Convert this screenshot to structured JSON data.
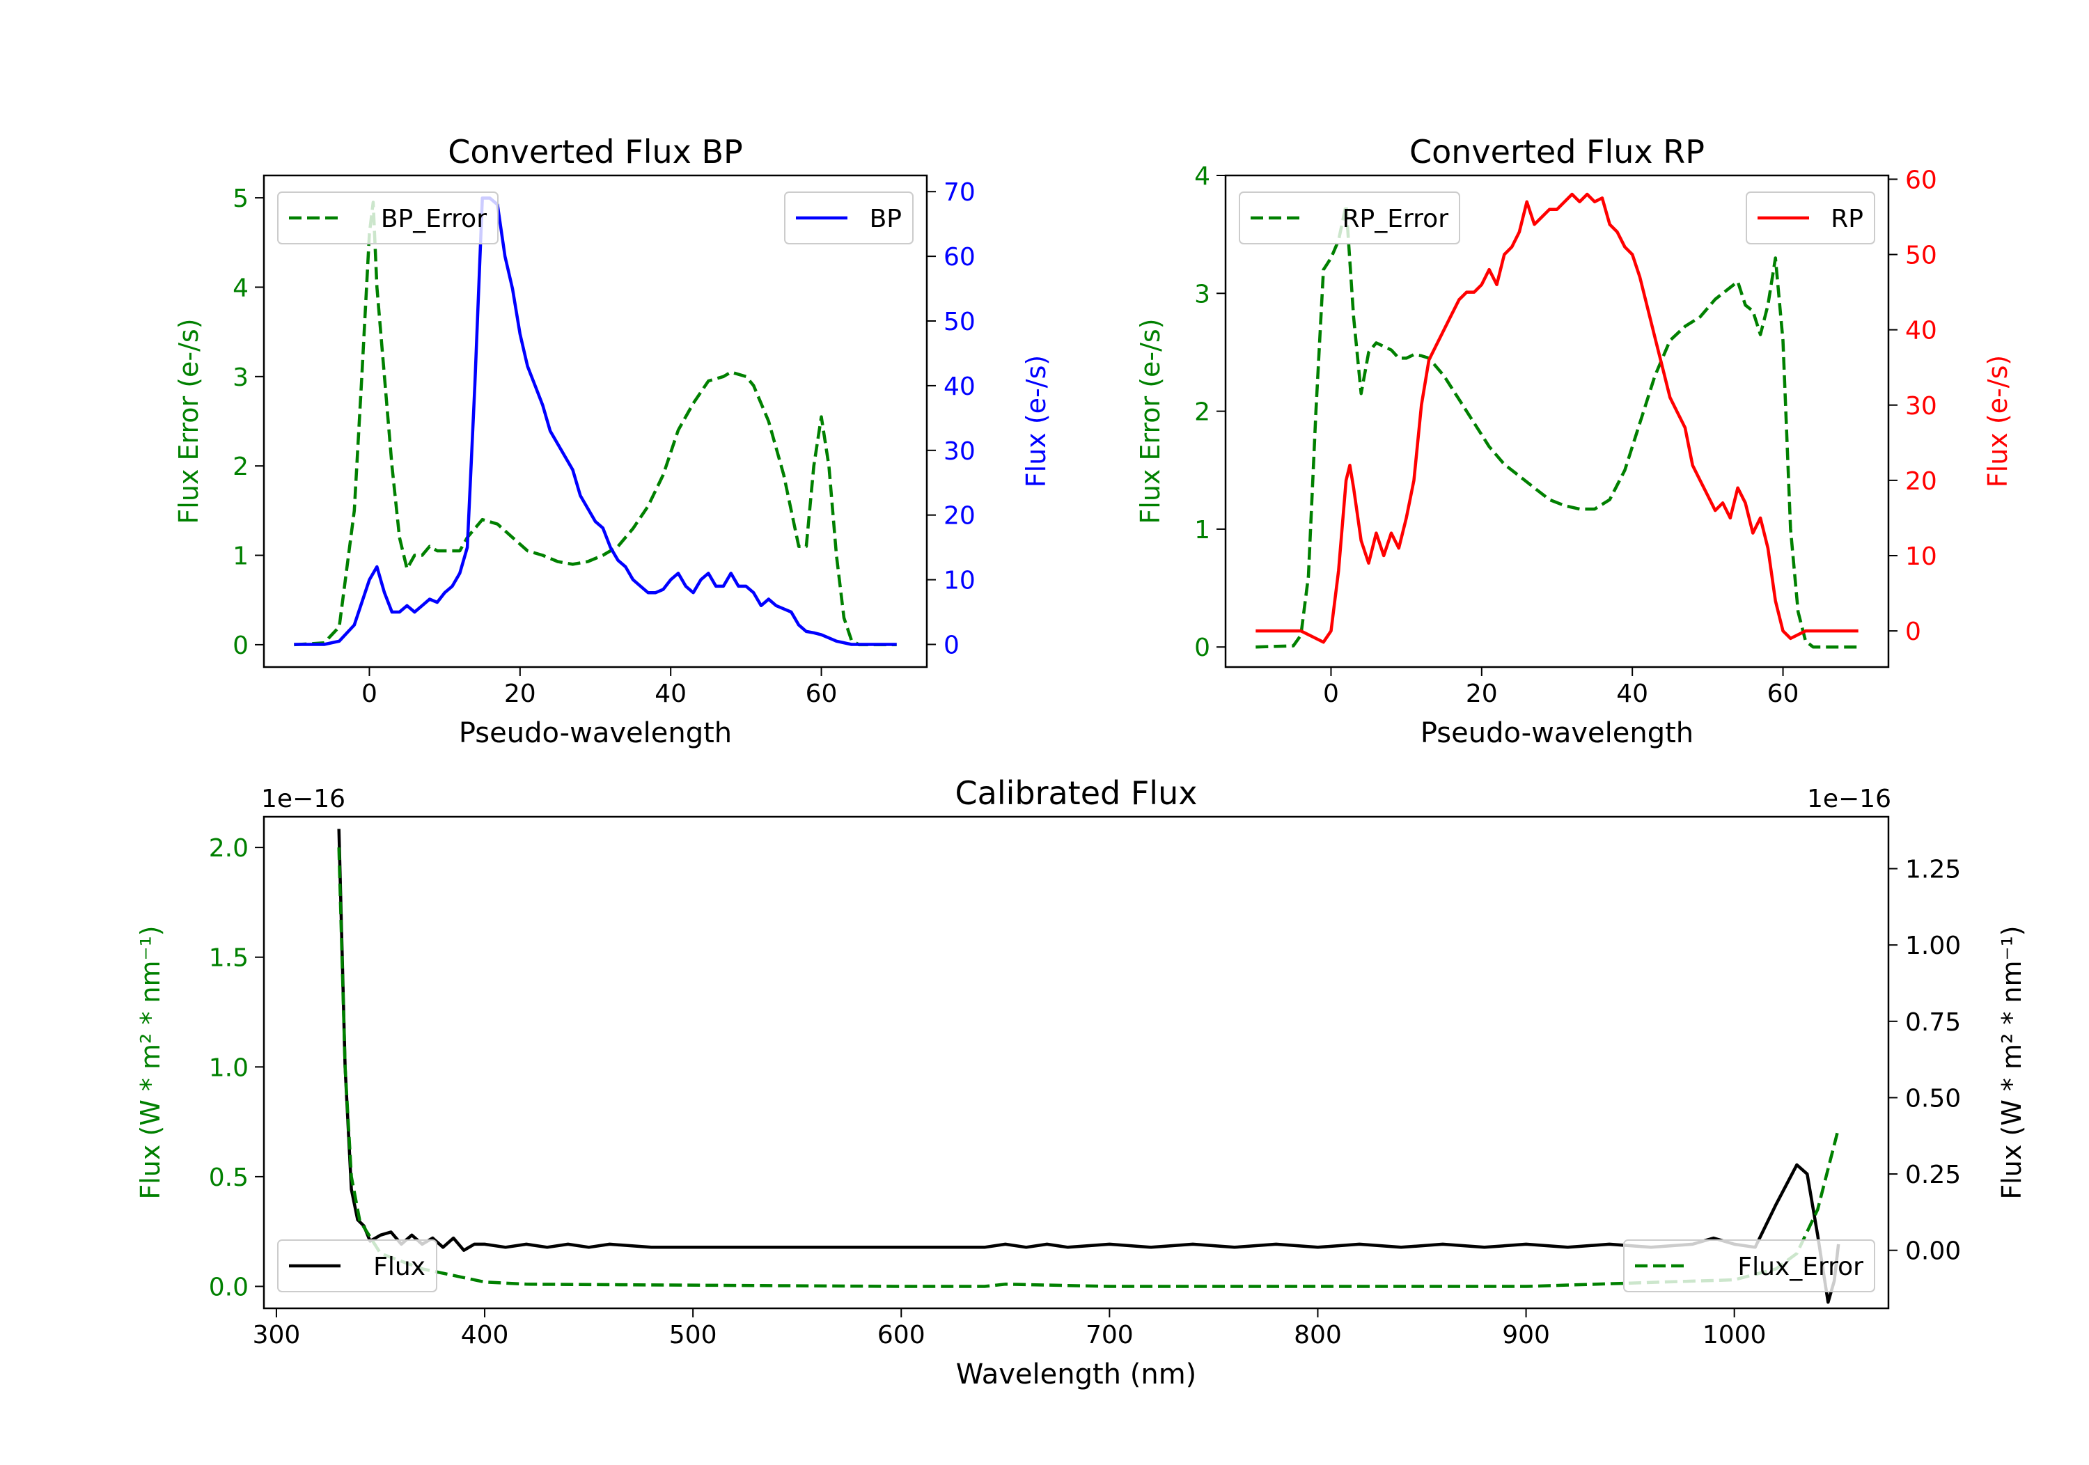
{
  "chart_data": [
    {
      "type": "line",
      "title": "Converted Flux BP",
      "xlabel": "Pseudo-wavelength",
      "ylabel_left": "Flux Error (e-/s)",
      "ylabel_right": "Flux (e-/s)",
      "xlim": [
        -14,
        74
      ],
      "xticks": [
        0,
        20,
        40,
        60
      ],
      "ylim_left": [
        -0.25,
        5.25
      ],
      "yticks_left": [
        0,
        1,
        2,
        3,
        4,
        5
      ],
      "ylim_right": [
        -3.5,
        72.5
      ],
      "yticks_right": [
        0,
        10,
        20,
        30,
        40,
        50,
        60,
        70
      ],
      "left_color": "#008000",
      "right_color": "#0000ff",
      "series": [
        {
          "name": "BP_Error",
          "axis": "left",
          "style": "dashed",
          "color": "#008000",
          "legend": "upper-left",
          "x": [
            -10,
            -6,
            -4,
            -2,
            -1,
            0,
            0.5,
            1,
            2,
            3,
            4,
            5,
            6,
            7,
            8,
            9,
            10,
            12,
            13,
            15,
            17,
            19,
            21,
            23,
            25,
            27,
            29,
            31,
            33,
            35,
            37,
            39,
            41,
            43,
            45,
            47,
            48,
            50,
            51,
            53,
            55,
            57,
            58,
            59,
            60,
            61,
            62,
            63,
            64,
            65,
            70
          ],
          "y": [
            0,
            0.02,
            0.2,
            1.5,
            3,
            4.6,
            4.95,
            4,
            3,
            2,
            1.2,
            0.85,
            1,
            1,
            1.1,
            1.05,
            1.05,
            1.05,
            1.2,
            1.4,
            1.35,
            1.2,
            1.05,
            1,
            0.93,
            0.9,
            0.93,
            1,
            1.1,
            1.3,
            1.55,
            1.9,
            2.4,
            2.7,
            2.95,
            3,
            3.05,
            3,
            2.9,
            2.5,
            1.9,
            1.1,
            1.1,
            2,
            2.55,
            2,
            1,
            0.3,
            0.05,
            0,
            0
          ]
        },
        {
          "name": "BP",
          "axis": "right",
          "style": "solid",
          "color": "#0000ff",
          "legend": "upper-right",
          "x": [
            -10,
            -6,
            -4,
            -2,
            0,
            1,
            2,
            3,
            4,
            5,
            6,
            7,
            8,
            9,
            10,
            11,
            12,
            13,
            14,
            15,
            16,
            17,
            18,
            19,
            20,
            21,
            22,
            23,
            24,
            25,
            26,
            27,
            28,
            29,
            30,
            31,
            32,
            33,
            34,
            35,
            36,
            37,
            38,
            39,
            40,
            41,
            42,
            43,
            44,
            45,
            46,
            47,
            48,
            49,
            50,
            51,
            52,
            53,
            54,
            55,
            56,
            57,
            58,
            59,
            60,
            61,
            62,
            64,
            70
          ],
          "y": [
            0,
            0,
            0.5,
            3,
            10,
            12,
            8,
            5,
            5,
            6,
            5,
            6,
            7,
            6.5,
            8,
            9,
            11,
            15,
            40,
            69,
            69,
            68,
            60,
            55,
            48,
            43,
            40,
            37,
            33,
            31,
            29,
            27,
            23,
            21,
            19,
            18,
            15,
            13,
            12,
            10,
            9,
            8,
            8,
            8.5,
            10,
            11,
            9,
            8,
            10,
            11,
            9,
            9,
            11,
            9,
            9,
            8,
            6,
            7,
            6,
            5.5,
            5,
            3,
            2,
            1.8,
            1.5,
            1,
            0.5,
            0,
            0
          ]
        }
      ]
    },
    {
      "type": "line",
      "title": "Converted Flux RP",
      "xlabel": "Pseudo-wavelength",
      "ylabel_left": "Flux Error (e-/s)",
      "ylabel_right": "Flux (e-/s)",
      "xlim": [
        -14,
        74
      ],
      "xticks": [
        0,
        20,
        40,
        60
      ],
      "ylim_left": [
        -0.17,
        4.0
      ],
      "yticks_left": [
        0,
        1,
        2,
        3,
        4
      ],
      "ylim_right": [
        -4.8,
        60.5
      ],
      "yticks_right": [
        0,
        10,
        20,
        30,
        40,
        50,
        60
      ],
      "left_color": "#008000",
      "right_color": "#ff0000",
      "series": [
        {
          "name": "RP_Error",
          "axis": "left",
          "style": "dashed",
          "color": "#008000",
          "legend": "upper-left",
          "x": [
            -10,
            -5,
            -4,
            -3,
            -2,
            -1,
            0,
            1,
            2,
            3,
            4,
            5,
            6,
            7,
            8,
            9,
            10,
            11,
            12,
            13,
            15,
            17,
            19,
            21,
            23,
            25,
            27,
            29,
            31,
            33,
            35,
            37,
            39,
            41,
            43,
            45,
            47,
            49,
            51,
            53,
            54,
            55,
            56,
            57,
            58,
            59,
            60,
            61,
            62,
            63,
            64,
            70
          ],
          "y": [
            0,
            0.01,
            0.1,
            0.6,
            2,
            3.2,
            3.3,
            3.45,
            3.75,
            2.8,
            2.15,
            2.5,
            2.58,
            2.55,
            2.52,
            2.45,
            2.45,
            2.48,
            2.47,
            2.45,
            2.3,
            2.1,
            1.9,
            1.7,
            1.55,
            1.45,
            1.35,
            1.25,
            1.2,
            1.17,
            1.17,
            1.25,
            1.5,
            1.9,
            2.3,
            2.6,
            2.72,
            2.8,
            2.95,
            3.05,
            3.1,
            2.9,
            2.85,
            2.65,
            2.9,
            3.3,
            2.6,
            1,
            0.3,
            0.05,
            0,
            0
          ]
        },
        {
          "name": "RP",
          "axis": "right",
          "style": "solid",
          "color": "#ff0000",
          "legend": "upper-right",
          "x": [
            -10,
            -4,
            -2,
            -1,
            0,
            1,
            2,
            2.5,
            3,
            4,
            5,
            6,
            7,
            8,
            9,
            10,
            11,
            12,
            13,
            14,
            15,
            16,
            17,
            18,
            19,
            20,
            21,
            22,
            23,
            24,
            25,
            26,
            27,
            28,
            29,
            30,
            31,
            32,
            33,
            34,
            35,
            36,
            37,
            38,
            39,
            40,
            41,
            42,
            43,
            44,
            45,
            46,
            47,
            48,
            49,
            50,
            51,
            52,
            53,
            54,
            55,
            56,
            57,
            58,
            59,
            60,
            61,
            62,
            63,
            64,
            70
          ],
          "y": [
            0,
            0,
            -1,
            -1.5,
            0,
            8,
            20,
            22,
            19,
            12,
            9,
            13,
            10,
            13,
            11,
            15,
            20,
            30,
            36,
            38,
            40,
            42,
            44,
            45,
            45,
            46,
            48,
            46,
            50,
            51,
            53,
            57,
            54,
            55,
            56,
            56,
            57,
            58,
            57,
            58,
            57,
            57.5,
            54,
            53,
            51,
            50,
            47,
            43,
            39,
            35,
            31,
            29,
            27,
            22,
            20,
            18,
            16,
            17,
            15,
            19,
            17,
            13,
            15,
            11,
            4,
            0,
            -1,
            -0.5,
            0,
            0,
            0
          ]
        }
      ]
    },
    {
      "type": "line",
      "title": "Calibrated Flux",
      "xlabel": "Wavelength (nm)",
      "ylabel_left": "Flux (W * m² * nm⁻¹)",
      "ylabel_right": "Flux (W * m² * nm⁻¹)",
      "offset_left": "1e−16",
      "offset_right": "1e−16",
      "xlim": [
        294,
        1074
      ],
      "xticks": [
        300,
        400,
        500,
        600,
        700,
        800,
        900,
        1000
      ],
      "ylim_left": [
        -0.1,
        2.14
      ],
      "yticks_left": [
        0.0,
        0.5,
        1.0,
        1.5,
        2.0
      ],
      "ylim_right": [
        -0.19,
        1.42
      ],
      "yticks_right": [
        0.0,
        0.25,
        0.5,
        0.75,
        1.0,
        1.25
      ],
      "left_color": "#008000",
      "right_color": "#000000",
      "series": [
        {
          "name": "Flux",
          "axis": "right",
          "style": "solid",
          "color": "#000000",
          "legend": "lower-left",
          "x": [
            330,
            333,
            336,
            339,
            342,
            345,
            350,
            355,
            360,
            365,
            370,
            375,
            380,
            385,
            390,
            395,
            400,
            410,
            420,
            430,
            440,
            450,
            460,
            480,
            500,
            550,
            600,
            640,
            650,
            660,
            670,
            680,
            700,
            720,
            740,
            760,
            780,
            800,
            820,
            840,
            860,
            880,
            900,
            920,
            940,
            960,
            980,
            990,
            1000,
            1010,
            1020,
            1030,
            1035,
            1040,
            1045,
            1048,
            1050
          ],
          "y": [
            1.38,
            0.6,
            0.2,
            0.1,
            0.08,
            0.03,
            0.05,
            0.06,
            0.02,
            0.05,
            0.02,
            0.04,
            0.01,
            0.04,
            0.0,
            0.02,
            0.02,
            0.01,
            0.02,
            0.01,
            0.02,
            0.01,
            0.02,
            0.01,
            0.01,
            0.01,
            0.01,
            0.01,
            0.02,
            0.01,
            0.02,
            0.01,
            0.02,
            0.01,
            0.02,
            0.01,
            0.02,
            0.01,
            0.02,
            0.01,
            0.02,
            0.01,
            0.02,
            0.01,
            0.02,
            0.01,
            0.02,
            0.04,
            0.02,
            0.01,
            0.15,
            0.28,
            0.25,
            0.05,
            -0.17,
            -0.1,
            0.02
          ]
        },
        {
          "name": "Flux_Error",
          "axis": "left",
          "style": "dashed",
          "color": "#008000",
          "legend": "lower-right",
          "x": [
            330,
            333,
            336,
            340,
            350,
            370,
            390,
            400,
            420,
            600,
            640,
            650,
            700,
            900,
            1000,
            1020,
            1030,
            1040,
            1050
          ],
          "y": [
            2.0,
            1.0,
            0.5,
            0.3,
            0.15,
            0.08,
            0.04,
            0.02,
            0.01,
            0.0,
            0.0,
            0.01,
            0.0,
            0.0,
            0.03,
            0.08,
            0.15,
            0.35,
            0.72
          ]
        }
      ]
    }
  ]
}
